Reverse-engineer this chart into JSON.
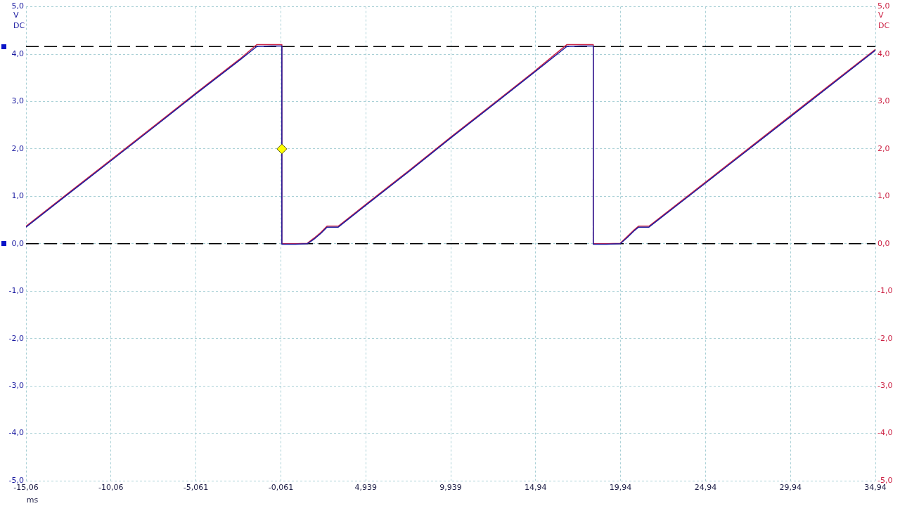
{
  "chart_data": {
    "type": "line",
    "xlabel": "ms",
    "ylabel": "V DC",
    "y2label": "V DC",
    "xlim": [
      -15.061,
      34.939
    ],
    "xticks": [
      {
        "value": -15.061,
        "label": "-15,06"
      },
      {
        "value": -10.061,
        "label": "-10,06"
      },
      {
        "value": -5.061,
        "label": "-5,061"
      },
      {
        "value": -0.061,
        "label": "-0,061"
      },
      {
        "value": 4.939,
        "label": "4,939"
      },
      {
        "value": 9.939,
        "label": "9,939"
      },
      {
        "value": 14.939,
        "label": "14,94"
      },
      {
        "value": 19.939,
        "label": "19,94"
      },
      {
        "value": 24.939,
        "label": "24,94"
      },
      {
        "value": 29.939,
        "label": "29,94"
      },
      {
        "value": 34.939,
        "label": "34,94"
      }
    ],
    "ylim": [
      -5,
      5
    ],
    "yticks": [
      {
        "value": -5,
        "label": "-5,0"
      },
      {
        "value": -4,
        "label": "-4,0"
      },
      {
        "value": -3,
        "label": "-3,0"
      },
      {
        "value": -2,
        "label": "-2,0"
      },
      {
        "value": -1,
        "label": "-1,0"
      },
      {
        "value": 0,
        "label": "0,0"
      },
      {
        "value": 1,
        "label": "1,0"
      },
      {
        "value": 2,
        "label": "2,0"
      },
      {
        "value": 3,
        "label": "3,0"
      },
      {
        "value": 4,
        "label": "4,0"
      },
      {
        "value": 5,
        "label": "5,0"
      }
    ],
    "y2lim": [
      -5,
      5
    ],
    "y2ticks": [
      {
        "value": -5,
        "label": "-5,0"
      },
      {
        "value": -4,
        "label": "-4,0"
      },
      {
        "value": -3,
        "label": "-3,0"
      },
      {
        "value": -2,
        "label": "-2,0"
      },
      {
        "value": -1,
        "label": "-1,0"
      },
      {
        "value": 0,
        "label": "0,0"
      },
      {
        "value": 1,
        "label": "1,0"
      },
      {
        "value": 2,
        "label": "2,0"
      },
      {
        "value": 3,
        "label": "3,0"
      },
      {
        "value": 4,
        "label": "4,0"
      },
      {
        "value": 5,
        "label": "5,0"
      }
    ],
    "grid": true,
    "legend": false,
    "ref_lines": [
      {
        "axis": "y",
        "value": 4.16,
        "color": "#000000",
        "line_style": "dashed"
      },
      {
        "axis": "y",
        "value": 0,
        "color": "#000000",
        "line_style": "dashed"
      }
    ],
    "series": [
      {
        "color": "#1a1aa0",
        "x": [
          -15.061,
          -12.5,
          -10.061,
          -7.5,
          -5.061,
          -2.5,
          -1.48,
          -0.6,
          0,
          0,
          0.8,
          1.5,
          1.9,
          2.3,
          2.66,
          3.32,
          4.939,
          7.5,
          9.939,
          12.5,
          14.939,
          16.77,
          17.6,
          18.33,
          18.33,
          19.1,
          19.92,
          20.3,
          20.7,
          21.0,
          21.61,
          24.939,
          29.939,
          34.939
        ],
        "values": [
          0.35,
          1.07,
          1.75,
          2.47,
          3.16,
          3.87,
          4.16,
          4.17,
          4.17,
          -0.01,
          -0.01,
          0.0,
          0.1,
          0.22,
          0.35,
          0.35,
          0.81,
          1.53,
          2.23,
          2.95,
          3.64,
          4.16,
          4.17,
          4.17,
          -0.01,
          -0.01,
          0.0,
          0.12,
          0.26,
          0.35,
          0.35,
          1.28,
          2.68,
          4.08
        ]
      },
      {
        "color": "#cc2244",
        "axis": "y2",
        "x": [
          -15.061,
          -12.5,
          -10.061,
          -7.5,
          -5.061,
          -2.5,
          -1.48,
          -0.6,
          0,
          0,
          0.8,
          1.5,
          1.9,
          2.3,
          2.66,
          3.32,
          4.939,
          7.5,
          9.939,
          12.5,
          14.939,
          16.77,
          17.6,
          18.33,
          18.33,
          19.1,
          19.92,
          20.3,
          20.7,
          21.0,
          21.61,
          24.939,
          29.939,
          34.939
        ],
        "values": [
          0.37,
          1.09,
          1.77,
          2.49,
          3.18,
          3.89,
          4.2,
          4.2,
          4.2,
          0.0,
          0.0,
          0.01,
          0.12,
          0.24,
          0.37,
          0.37,
          0.83,
          1.55,
          2.25,
          2.97,
          3.66,
          4.2,
          4.2,
          4.2,
          0.0,
          0.0,
          0.01,
          0.14,
          0.28,
          0.37,
          0.37,
          1.3,
          2.7,
          4.1
        ]
      },
      {
        "type": "scatter",
        "color": "#ffff00",
        "marker": "diamond",
        "x": [
          0
        ],
        "values": [
          2.0
        ]
      }
    ]
  }
}
